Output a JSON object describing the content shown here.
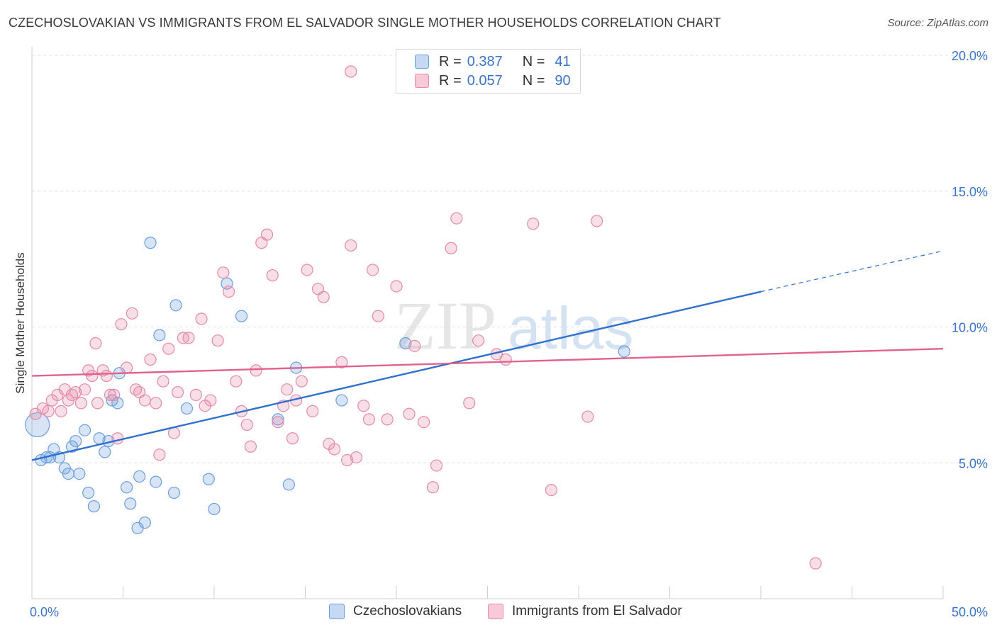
{
  "header": {
    "title": "CZECHOSLOVAKIAN VS IMMIGRANTS FROM EL SALVADOR SINGLE MOTHER HOUSEHOLDS CORRELATION CHART",
    "source": "Source: ZipAtlas.com"
  },
  "watermark": {
    "zip": "ZIP",
    "atlas": "atlas"
  },
  "legend": {
    "r_label": "R =",
    "n_label": "N =",
    "series": [
      {
        "name": "Czechoslovakians",
        "r": "0.387",
        "n": "41",
        "color": "#6b9ee0",
        "fill": "#c5d9f3"
      },
      {
        "name": "Immigrants from El Salvador",
        "r": "0.057",
        "n": "90",
        "color": "#e58aa8",
        "fill": "#f8c9d7"
      }
    ]
  },
  "chart_data": {
    "type": "scatter",
    "xlabel": "",
    "ylabel": "Single Mother Households",
    "xlim": [
      0,
      50
    ],
    "ylim": [
      0,
      20
    ],
    "x_tick_labels": [
      "0.0%",
      "50.0%"
    ],
    "y_tick_labels": [
      "5.0%",
      "10.0%",
      "15.0%",
      "20.0%"
    ],
    "y_ticks": [
      5,
      10,
      15,
      20
    ],
    "grid": "horizontal dashed",
    "series": [
      {
        "name": "Czechoslovakians",
        "color": "#6b9ee0",
        "line_color": "#2e6fcf",
        "trend": {
          "x0": 0,
          "y0": 5.1,
          "x1": 40,
          "y1": 11.3,
          "dash_x1": 50,
          "dash_y1": 12.8
        },
        "points": [
          [
            0.3,
            6.4
          ],
          [
            0.5,
            5.1
          ],
          [
            0.8,
            5.2
          ],
          [
            1.0,
            5.2
          ],
          [
            1.2,
            5.5
          ],
          [
            1.5,
            5.2
          ],
          [
            1.8,
            4.8
          ],
          [
            2.0,
            4.6
          ],
          [
            2.2,
            5.6
          ],
          [
            2.4,
            5.8
          ],
          [
            2.6,
            4.6
          ],
          [
            2.9,
            6.2
          ],
          [
            3.1,
            3.9
          ],
          [
            3.4,
            3.4
          ],
          [
            3.7,
            5.9
          ],
          [
            4.0,
            5.4
          ],
          [
            4.2,
            5.8
          ],
          [
            4.4,
            7.3
          ],
          [
            4.7,
            7.2
          ],
          [
            4.8,
            8.3
          ],
          [
            5.2,
            4.1
          ],
          [
            5.4,
            3.5
          ],
          [
            5.9,
            4.5
          ],
          [
            5.8,
            2.6
          ],
          [
            6.2,
            2.8
          ],
          [
            6.5,
            13.1
          ],
          [
            6.8,
            4.3
          ],
          [
            7.0,
            9.7
          ],
          [
            7.8,
            3.9
          ],
          [
            7.9,
            10.8
          ],
          [
            8.5,
            7.0
          ],
          [
            9.7,
            4.4
          ],
          [
            10.0,
            3.3
          ],
          [
            10.7,
            11.6
          ],
          [
            11.5,
            10.4
          ],
          [
            13.5,
            6.6
          ],
          [
            14.1,
            4.2
          ],
          [
            14.5,
            8.5
          ],
          [
            17.0,
            7.3
          ],
          [
            20.5,
            9.4
          ],
          [
            32.5,
            9.1
          ]
        ]
      },
      {
        "name": "Immigrants from El Salvador",
        "color": "#e58aa8",
        "line_color": "#e0628d",
        "trend": {
          "x0": 0,
          "y0": 8.2,
          "x1": 50,
          "y1": 9.2
        },
        "points": [
          [
            0.2,
            6.8
          ],
          [
            0.6,
            7.0
          ],
          [
            0.9,
            6.9
          ],
          [
            1.1,
            7.3
          ],
          [
            1.4,
            7.5
          ],
          [
            1.6,
            6.9
          ],
          [
            1.8,
            7.7
          ],
          [
            2.0,
            7.3
          ],
          [
            2.2,
            7.5
          ],
          [
            2.4,
            7.6
          ],
          [
            2.7,
            7.2
          ],
          [
            2.9,
            7.7
          ],
          [
            3.1,
            8.4
          ],
          [
            3.3,
            8.2
          ],
          [
            3.5,
            9.4
          ],
          [
            3.6,
            7.2
          ],
          [
            3.9,
            8.4
          ],
          [
            4.1,
            8.2
          ],
          [
            4.3,
            7.5
          ],
          [
            4.5,
            7.5
          ],
          [
            4.7,
            5.9
          ],
          [
            4.9,
            10.1
          ],
          [
            5.2,
            8.5
          ],
          [
            5.5,
            10.5
          ],
          [
            5.7,
            7.7
          ],
          [
            5.9,
            7.6
          ],
          [
            6.2,
            7.3
          ],
          [
            6.5,
            8.8
          ],
          [
            6.8,
            7.2
          ],
          [
            7.0,
            5.3
          ],
          [
            7.2,
            8.0
          ],
          [
            7.5,
            9.2
          ],
          [
            7.8,
            6.1
          ],
          [
            8.0,
            7.6
          ],
          [
            8.3,
            9.6
          ],
          [
            8.6,
            9.6
          ],
          [
            9.0,
            7.5
          ],
          [
            9.3,
            10.3
          ],
          [
            9.5,
            7.1
          ],
          [
            9.8,
            7.3
          ],
          [
            10.2,
            9.5
          ],
          [
            10.5,
            12.0
          ],
          [
            10.8,
            11.3
          ],
          [
            11.2,
            8.0
          ],
          [
            11.5,
            6.9
          ],
          [
            11.8,
            6.4
          ],
          [
            12.0,
            5.6
          ],
          [
            12.3,
            8.4
          ],
          [
            12.6,
            13.1
          ],
          [
            12.9,
            13.4
          ],
          [
            13.2,
            11.9
          ],
          [
            13.5,
            6.5
          ],
          [
            13.8,
            7.1
          ],
          [
            14.0,
            7.7
          ],
          [
            14.3,
            5.9
          ],
          [
            14.5,
            7.3
          ],
          [
            14.8,
            8.0
          ],
          [
            15.1,
            12.1
          ],
          [
            15.4,
            6.9
          ],
          [
            15.7,
            11.4
          ],
          [
            16.0,
            11.1
          ],
          [
            16.3,
            5.7
          ],
          [
            16.6,
            5.5
          ],
          [
            17.0,
            8.7
          ],
          [
            17.3,
            5.1
          ],
          [
            17.5,
            13.0
          ],
          [
            17.8,
            5.2
          ],
          [
            18.2,
            7.1
          ],
          [
            18.5,
            6.6
          ],
          [
            18.7,
            12.1
          ],
          [
            19.0,
            10.4
          ],
          [
            19.5,
            6.6
          ],
          [
            20.0,
            11.5
          ],
          [
            20.7,
            6.8
          ],
          [
            21.0,
            9.3
          ],
          [
            22.0,
            4.1
          ],
          [
            22.2,
            4.9
          ],
          [
            23.0,
            12.9
          ],
          [
            23.3,
            14.0
          ],
          [
            24.0,
            7.2
          ],
          [
            24.5,
            9.5
          ],
          [
            25.5,
            9.0
          ],
          [
            27.5,
            13.8
          ],
          [
            28.5,
            4.0
          ],
          [
            30.5,
            6.7
          ],
          [
            31.0,
            13.9
          ],
          [
            17.5,
            19.4
          ],
          [
            43.0,
            1.3
          ],
          [
            26.0,
            8.8
          ],
          [
            21.5,
            6.5
          ]
        ]
      }
    ]
  }
}
